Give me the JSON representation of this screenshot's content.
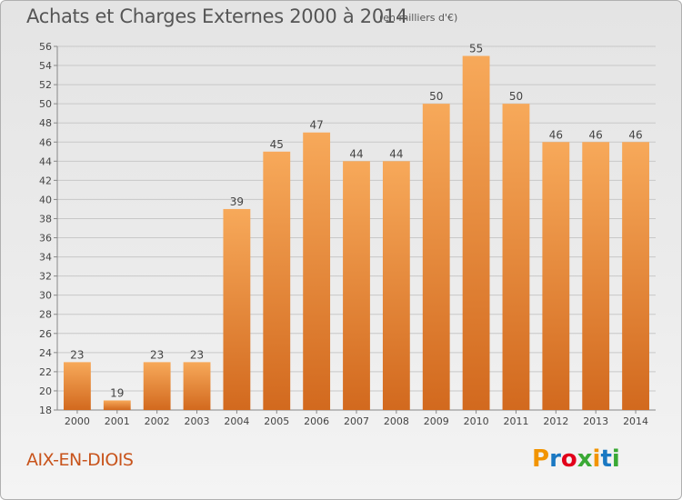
{
  "header": {
    "title": "Achats et Charges Externes 2000 à 2014",
    "unit_note": "(en milliers d'€)"
  },
  "footer": {
    "city": "AIX-EN-DIOIS",
    "logo_text": "Proxiti",
    "logo_colors": [
      "#f29400",
      "#1a78c2",
      "#e2001a",
      "#3aa935",
      "#f29400",
      "#1a78c2",
      "#3aa935"
    ]
  },
  "colors": {
    "bar_light": "#f7a95a",
    "bar_dark": "#d2691e",
    "grid": "#c8c8c8",
    "axis_text": "#444444",
    "city_text": "#c8541c"
  },
  "chart_data": {
    "type": "bar",
    "title": "Achats et Charges Externes 2000 à 2014",
    "subtitle": "(en milliers d'€)",
    "xlabel": "",
    "ylabel": "",
    "categories": [
      "2000",
      "2001",
      "2002",
      "2003",
      "2004",
      "2005",
      "2006",
      "2007",
      "2008",
      "2009",
      "2010",
      "2011",
      "2012",
      "2013",
      "2014"
    ],
    "values": [
      23,
      19,
      23,
      23,
      39,
      45,
      47,
      44,
      44,
      50,
      55,
      50,
      46,
      46,
      46
    ],
    "ylim": [
      18,
      56
    ],
    "yticks": [
      18,
      20,
      22,
      24,
      26,
      28,
      30,
      32,
      34,
      36,
      38,
      40,
      42,
      44,
      46,
      48,
      50,
      52,
      54,
      56
    ],
    "grid": true,
    "legend": "none"
  }
}
